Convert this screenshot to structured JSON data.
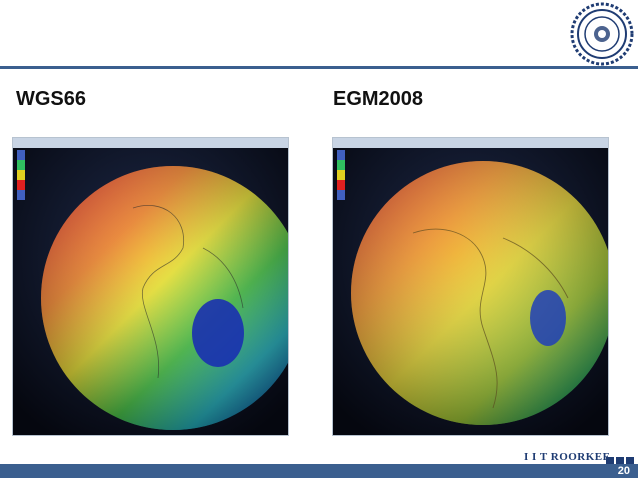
{
  "slide": {
    "left_title": "WGS66",
    "right_title": "EGM2008",
    "brand": "I I T ROORKEE",
    "page_number": "20"
  },
  "colors": {
    "accent": "#3b5f8f",
    "brand": "#1f3c73"
  },
  "icons": {
    "logo": "iit-roorkee-seal-icon"
  }
}
